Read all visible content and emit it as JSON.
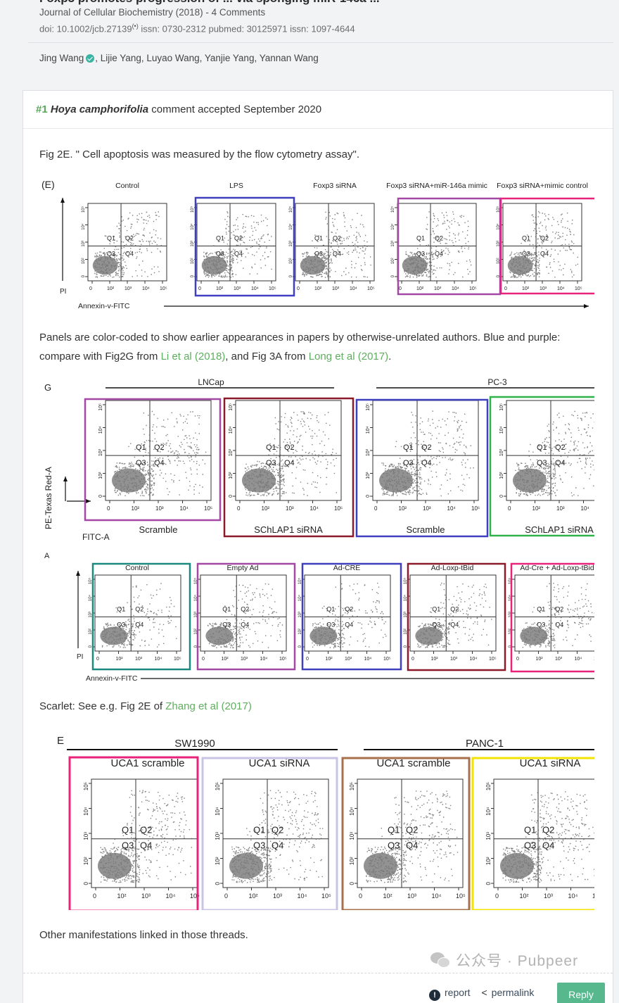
{
  "publication": {
    "title_cut": "Foxp3 promotes progression of ... via sponging miR-146a ...",
    "journal": "Journal of Cellular Biochemistry (2018) - 4 Comments",
    "doi": "doi: 10.1002/jcb.27139",
    "doi_sup": "(•)",
    "ids": "issn: 0730-2312  pubmed: 30125971  issn: 1097-4644",
    "authors_first": "Jing Wang",
    "authors_rest": ", Lijie Yang, Luyao Wang, Yanjie Yang, Yannan Wang"
  },
  "comment": {
    "number": "#1",
    "author": "Hoya camphorifolia",
    "status": "comment accepted September 2020",
    "p1": "Fig 2E. \" Cell apoptosis was measured by the flow cytometry assay\".",
    "p2_a": "Panels are color-coded to show earlier appearances in papers by otherwise-unrelated authors. Blue and purple: compare with Fig2G from ",
    "p2_link1": "Li et al (2018)",
    "p2_b": ", and Fig 3A from ",
    "p2_link2": "Long et al (2017)",
    "p2_c": ".",
    "p3_a": "Scarlet: See e.g. Fig 2E of ",
    "p3_link": "Zhang et al (2017)",
    "p4": "Other manifestations linked in those threads."
  },
  "figE1": {
    "label": "(E)",
    "panels": [
      "Control",
      "LPS",
      "Foxp3 siRNA",
      "Foxp3 siRNA+miR-146a mimic",
      "Foxp3 siRNA+mimic control"
    ],
    "xlabel": "Annexin-v-FITC",
    "ylabel": "PI"
  },
  "figG": {
    "label": "G",
    "groups": [
      "LNCap",
      "PC-3"
    ],
    "panels": [
      "Scramble",
      "SChLAP1 siRNA",
      "Scramble",
      "SChLAP1 siRNA"
    ],
    "ylabel": "PE-Texas Red-A",
    "xlabel": "FITC-A"
  },
  "figA": {
    "label": "A",
    "panels": [
      "Control",
      "Empty Ad",
      "Ad-CRE",
      "Ad-Loxp-tBid",
      "Ad-Cre + Ad-Loxp-tBid"
    ],
    "xlabel": "Annexin-v-FITC",
    "ylabel": "PI"
  },
  "figE2": {
    "label": "E",
    "groups": [
      "SW1990",
      "PANC-1"
    ],
    "panels": [
      "UCA1 scramble",
      "UCA1 siRNA",
      "UCA1 scramble",
      "UCA1 siRNA"
    ]
  },
  "quadrants": [
    "Q1",
    "Q2",
    "Q3",
    "Q4"
  ],
  "ticks": [
    "0",
    "10²",
    "10³",
    "10⁴",
    "10⁵"
  ],
  "colors": {
    "blue": "#3f3fbf",
    "purple": "#a349a4",
    "scarlet": "#e8237a",
    "dark_red": "#8b1a2b",
    "green": "#2fb24a",
    "teal": "#1a8a80",
    "lavender": "#c8c4e4",
    "brown": "#a9714b",
    "yellow": "#f2e300"
  },
  "footer": {
    "watermark": "公众号 · Pubpeer",
    "report": "report",
    "permalink": "permalink",
    "reply": "Reply"
  }
}
